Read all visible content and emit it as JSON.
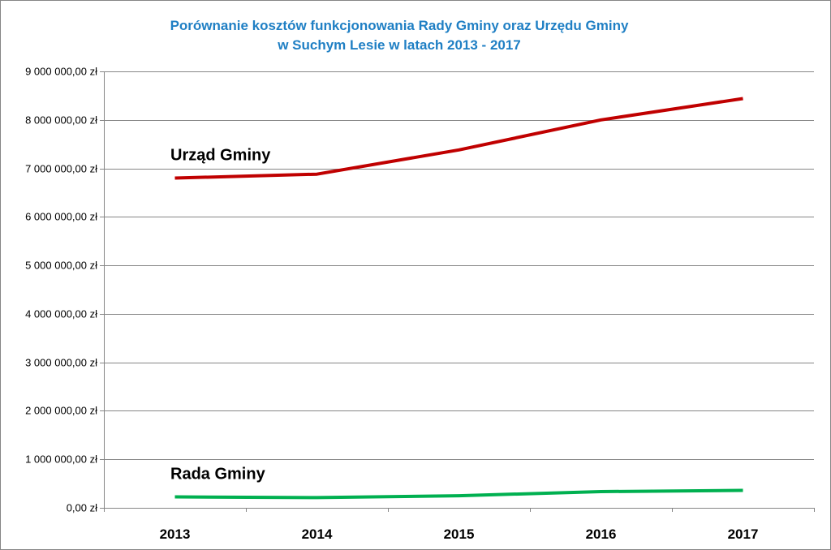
{
  "chart_data": {
    "type": "line",
    "title": "Porównanie kosztów funkcjonowania Rady Gminy oraz Urzędu Gminy",
    "subtitle": "w Suchym Lesie w latach 2013 - 2017",
    "xlabel": "",
    "ylabel": "",
    "categories": [
      "2013",
      "2014",
      "2015",
      "2016",
      "2017"
    ],
    "ylim": [
      0,
      9000000
    ],
    "y_ticks": [
      0,
      1000000,
      2000000,
      3000000,
      4000000,
      5000000,
      6000000,
      7000000,
      8000000,
      9000000
    ],
    "y_tick_labels": [
      "0,00 zł",
      "1 000 000,00 zł",
      "2 000 000,00 zł",
      "3 000 000,00 zł",
      "4 000 000,00 zł",
      "5 000 000,00 zł",
      "6 000 000,00 zł",
      "7 000 000,00 zł",
      "8 000 000,00 zł",
      "9 000 000,00 zł"
    ],
    "grid": true,
    "legend": "none",
    "series": [
      {
        "name": "Urząd Gminy",
        "color": "#c00000",
        "values": [
          6800000,
          6880000,
          7380000,
          8000000,
          8440000
        ]
      },
      {
        "name": "Rada Gminy",
        "color": "#00b050",
        "values": [
          225000,
          210000,
          250000,
          335000,
          360000
        ]
      }
    ]
  }
}
